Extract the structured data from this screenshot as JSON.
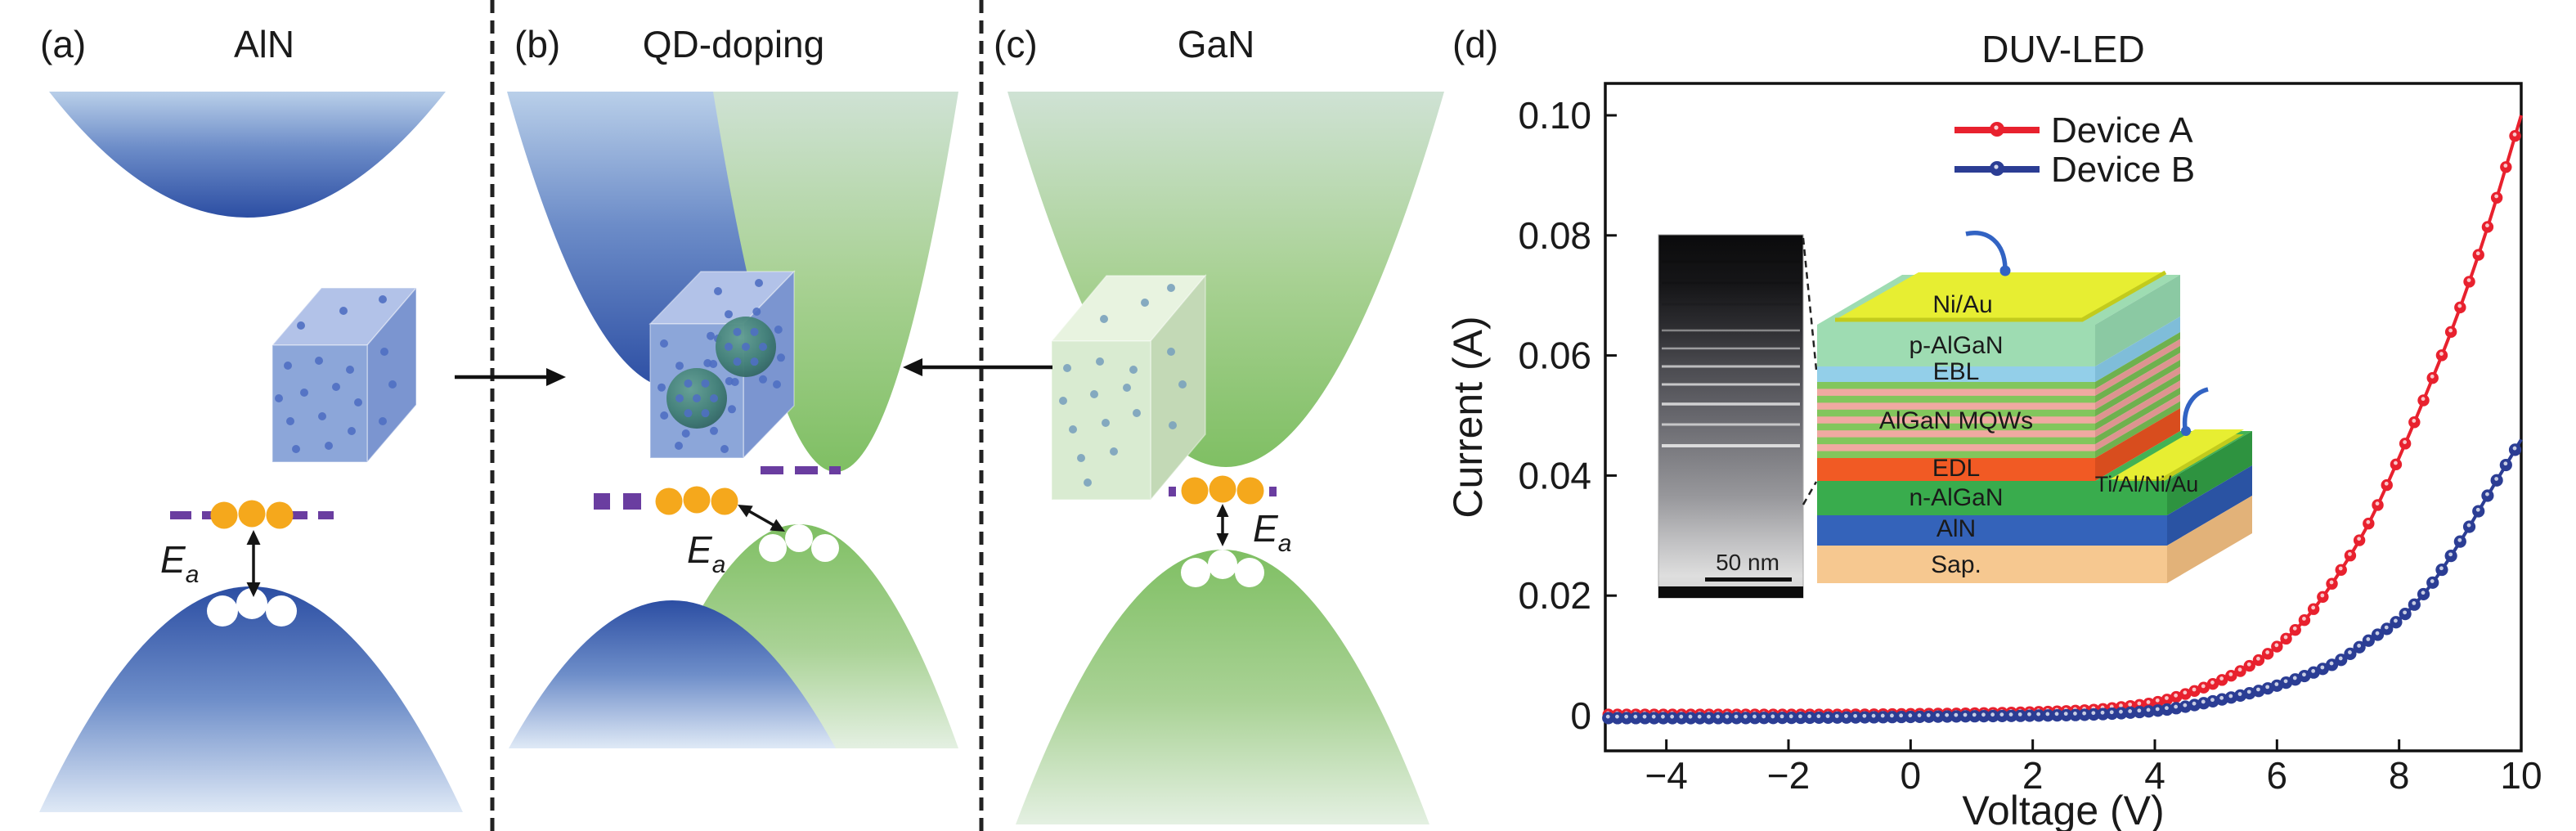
{
  "figure_labels": {
    "a": "(a)",
    "b": "(b)",
    "c": "(c)",
    "d": "(d)"
  },
  "panels": {
    "a": {
      "title": "AlN",
      "activation_label": {
        "main": "E",
        "sub": "a"
      }
    },
    "b": {
      "title": "QD-doping",
      "activation_label": {
        "main": "E",
        "sub": "a"
      }
    },
    "c": {
      "title": "GaN",
      "activation_label": {
        "main": "E",
        "sub": "a"
      }
    }
  },
  "chart_data": {
    "type": "line",
    "title": "DUV-LED",
    "xlabel": "Voltage (V)",
    "ylabel": "Current (A)",
    "xlim": [
      -5,
      10
    ],
    "ylim": [
      -0.006,
      0.105
    ],
    "grid": false,
    "legend_position": "upper right inside",
    "marker_step_v": 0.15,
    "x_ticks": [
      {
        "value": -4,
        "label": "−4"
      },
      {
        "value": -2,
        "label": "−2"
      },
      {
        "value": 0,
        "label": "0"
      },
      {
        "value": 2,
        "label": "2"
      },
      {
        "value": 4,
        "label": "4"
      },
      {
        "value": 6,
        "label": "6"
      },
      {
        "value": 8,
        "label": "8"
      },
      {
        "value": 10,
        "label": "10"
      }
    ],
    "y_ticks": [
      {
        "value": 0,
        "label": "0"
      },
      {
        "value": 0.02,
        "label": "0.02"
      },
      {
        "value": 0.04,
        "label": "0.04"
      },
      {
        "value": 0.06,
        "label": "0.06"
      },
      {
        "value": 0.08,
        "label": "0.08"
      },
      {
        "value": 0.1,
        "label": "0.10"
      }
    ],
    "series": [
      {
        "name": "Device A",
        "color": "#e8212e",
        "points": [
          [
            -5,
            0.0002
          ],
          [
            -3,
            0.0002
          ],
          [
            -1,
            0.0002
          ],
          [
            0,
            0.0003
          ],
          [
            1,
            0.0004
          ],
          [
            2,
            0.0006
          ],
          [
            3,
            0.001
          ],
          [
            3.5,
            0.0015
          ],
          [
            4,
            0.0022
          ],
          [
            4.5,
            0.0036
          ],
          [
            5,
            0.0055
          ],
          [
            5.5,
            0.008
          ],
          [
            6,
            0.0115
          ],
          [
            6.5,
            0.0165
          ],
          [
            7,
            0.0235
          ],
          [
            7.5,
            0.032
          ],
          [
            8,
            0.043
          ],
          [
            8.5,
            0.055
          ],
          [
            9,
            0.068
          ],
          [
            9.5,
            0.083
          ],
          [
            10,
            0.1
          ]
        ]
      },
      {
        "name": "Device B",
        "color": "#2b3d94",
        "points": [
          [
            -5,
            -0.0004
          ],
          [
            -3,
            -0.0004
          ],
          [
            -1,
            -0.0003
          ],
          [
            0,
            -0.0002
          ],
          [
            1,
            -0.0001
          ],
          [
            2,
            0
          ],
          [
            3,
            0.0002
          ],
          [
            4,
            0.0008
          ],
          [
            4.5,
            0.0015
          ],
          [
            5,
            0.0025
          ],
          [
            5.5,
            0.0036
          ],
          [
            6,
            0.005
          ],
          [
            6.5,
            0.0068
          ],
          [
            7,
            0.009
          ],
          [
            7.5,
            0.0125
          ],
          [
            8,
            0.016
          ],
          [
            8.5,
            0.0215
          ],
          [
            9,
            0.029
          ],
          [
            9.5,
            0.0375
          ],
          [
            10,
            0.046
          ]
        ]
      }
    ]
  },
  "inset": {
    "tem_scale_label": "50 nm",
    "top_contact": "Ni/Au",
    "n_contact": "Ti/Al/Ni/Au",
    "contact_color": "#e7ee32",
    "contact_edge": "#c2cb1d",
    "mesa_top_color": "#9edcb2",
    "arrow_color": "#3263c3",
    "layers": [
      {
        "name": "p-AlGaN",
        "front": "#9edcb2",
        "side": "#8bc9a3"
      },
      {
        "name": "EBL",
        "front": "#93cfe9",
        "side": "#7fbdd9"
      },
      {
        "name": "AlGaN MQWs",
        "front": "mqw",
        "side": "mqw",
        "well": "#82c65c",
        "barrier": "#f0a9a1",
        "well_side": "#6fb14e",
        "barrier_side": "#dd9490"
      },
      {
        "name": "EDL",
        "front": "#f15a24",
        "side": "#d84d1e"
      },
      {
        "name": "n-AlGaN",
        "front": "#39ac4d",
        "side": "#2e9340"
      },
      {
        "name": "AlN",
        "front": "#3463ba",
        "side": "#2a53a3"
      },
      {
        "name": "Sap.",
        "front": "#f6c890",
        "side": "#e2b279"
      }
    ]
  },
  "band_colors": {
    "blue_dark": "#2c4ea3",
    "blue_light": "#b9cfe9",
    "green_dark": "#7fbf63",
    "green_light": "#cfe2d4",
    "hole_fill": "#ffffff",
    "acceptor_dot": "#f5a81c",
    "acceptor_line": "#6a3da0",
    "cube_a": {
      "front": "#8ca6d9",
      "top": "#b2c2e8",
      "right": "#7b95d0",
      "dot": "#4f6fc2"
    },
    "cube_c": {
      "front": "#d9ebd1",
      "top": "#e8f3e0",
      "right": "#c3d9b6",
      "dot": "#7aa2bd"
    },
    "qd_dot": "#4f6fc2"
  }
}
